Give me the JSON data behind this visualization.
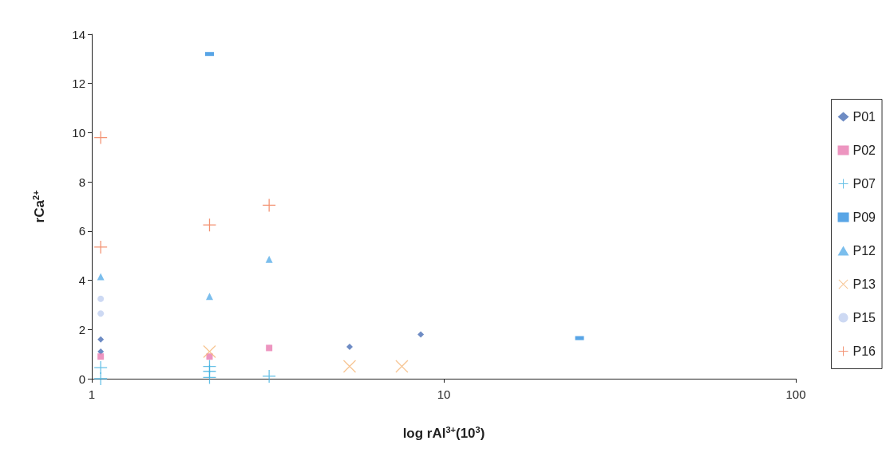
{
  "chart_data": {
    "type": "scatter",
    "xlabel": "log rAl$^{3+}$(10$^{3}$)",
    "ylabel": "rCa$^{2+}$",
    "log": "x",
    "xlim": [
      1,
      100
    ],
    "xticks": [
      1,
      10,
      100
    ],
    "ylim": [
      0,
      14
    ],
    "yticks": [
      0,
      2,
      4,
      6,
      8,
      10,
      12,
      14
    ],
    "grid": false,
    "legend": "right",
    "series": [
      {
        "name": "P01",
        "color": "#4a6fb5",
        "marker": "diamond",
        "x": [
          1.06,
          1.06,
          5.4,
          8.6
        ],
        "values": [
          1.6,
          1.1,
          1.3,
          1.8
        ]
      },
      {
        "name": "P02",
        "color": "#e87ab0",
        "marker": "square",
        "x": [
          1.06,
          2.16,
          3.19
        ],
        "values": [
          0.9,
          0.9,
          1.25
        ]
      },
      {
        "name": "P07",
        "color": "#40b0e0",
        "marker": "plus",
        "x": [
          1.06,
          1.06,
          2.16,
          2.16,
          2.16,
          3.19
        ],
        "values": [
          0.45,
          0,
          0.5,
          0.3,
          0.05,
          0.1
        ]
      },
      {
        "name": "P09",
        "color": "#2e8fe0",
        "marker": "square",
        "x": [
          2.16,
          24.3
        ],
        "values": [
          13.2,
          1.65
        ]
      },
      {
        "name": "P12",
        "color": "#5aaee8",
        "marker": "triangle",
        "x": [
          1.06,
          2.16,
          3.19
        ],
        "values": [
          4.15,
          3.35,
          4.85
        ]
      },
      {
        "name": "P13",
        "color": "#f5b87a",
        "marker": "cross",
        "x": [
          2.16,
          5.4,
          7.6
        ],
        "values": [
          1.1,
          0.5,
          0.5
        ]
      },
      {
        "name": "P15",
        "color": "#c0d0f0",
        "marker": "circle",
        "x": [
          1.06,
          1.06
        ],
        "values": [
          3.25,
          2.65
        ]
      },
      {
        "name": "P16",
        "color": "#f07850",
        "marker": "plus",
        "x": [
          1.06,
          1.06,
          2.16,
          3.19
        ],
        "values": [
          9.8,
          5.35,
          6.25,
          7.05
        ]
      }
    ]
  }
}
